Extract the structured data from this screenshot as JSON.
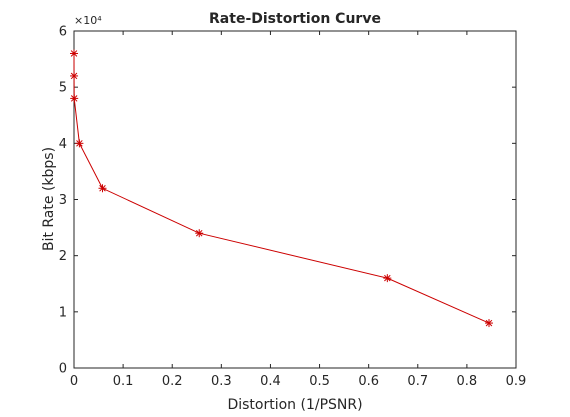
{
  "chart_data": {
    "type": "line",
    "title": "Rate-Distortion Curve",
    "xlabel": "Distortion (1/PSNR)",
    "ylabel": "Bit Rate (kbps)",
    "xlim": [
      0,
      0.9
    ],
    "ylim": [
      0,
      60000
    ],
    "x_ticks": [
      0,
      0.1,
      0.2,
      0.3,
      0.4,
      0.5,
      0.6,
      0.7,
      0.8,
      0.9
    ],
    "x_tick_labels": [
      "0",
      "0.1",
      "0.2",
      "0.3",
      "0.4",
      "0.5",
      "0.6",
      "0.7",
      "0.8",
      "0.9"
    ],
    "y_ticks": [
      0,
      10000,
      20000,
      30000,
      40000,
      50000,
      60000
    ],
    "y_tick_labels": [
      "0",
      "1",
      "2",
      "3",
      "4",
      "5",
      "6"
    ],
    "y_exponent_label": "×10⁴",
    "grid": false,
    "line_color": "#cc0000",
    "marker": "asterisk",
    "series": [
      {
        "x": [
          0.0,
          0.0001,
          0.0004,
          0.011,
          0.058,
          0.255,
          0.638,
          0.845
        ],
        "y": [
          56000,
          52000,
          48000,
          40000,
          32000,
          24000,
          16000,
          8000
        ]
      }
    ]
  }
}
